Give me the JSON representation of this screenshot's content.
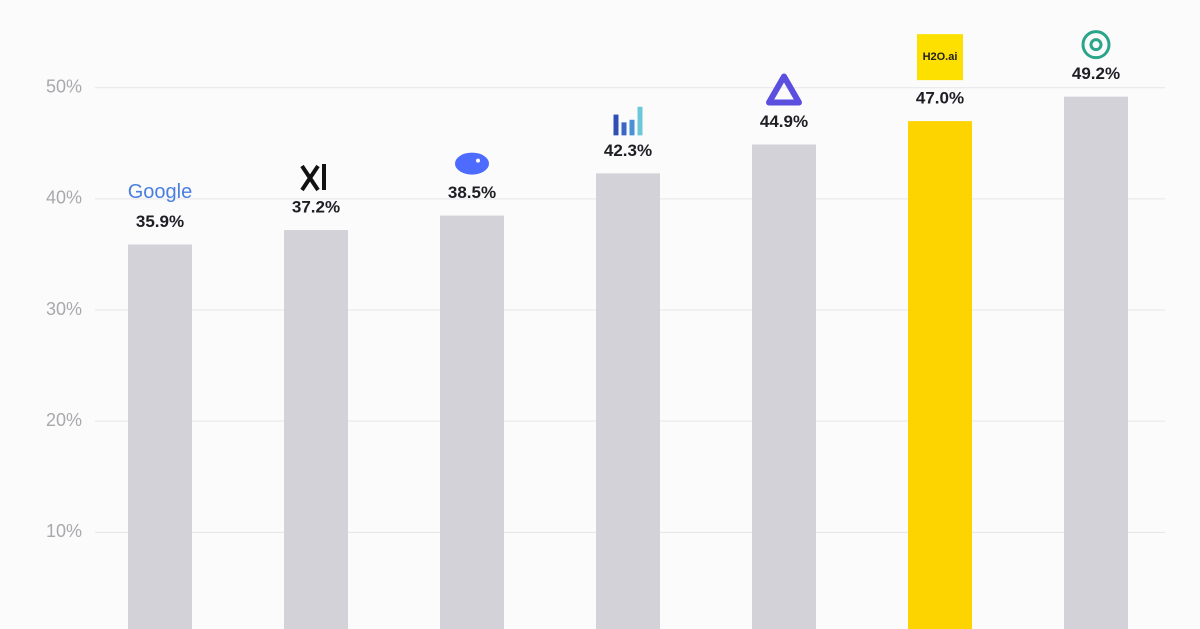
{
  "chart_data": {
    "type": "bar",
    "categories": [
      "Google",
      null,
      null,
      null,
      null,
      "H2O.ai",
      null
    ],
    "values": [
      35.9,
      37.2,
      38.5,
      42.3,
      44.9,
      47.0,
      49.2
    ],
    "value_labels": [
      "35.9%",
      "37.2%",
      "38.5%",
      "42.3%",
      "44.9%",
      "47.0%",
      "49.2%"
    ],
    "colors": [
      "#d4d2d9",
      "#d4d2d9",
      "#d4d2d9",
      "#d4d2d9",
      "#d4d2d9",
      "#fdd300",
      "#d4d2d9"
    ],
    "ylim": [
      1.3,
      57.9
    ],
    "yticks": [
      {
        "value": 10,
        "label": "10%"
      },
      {
        "value": 20,
        "label": "20%"
      },
      {
        "value": 30,
        "label": "30%"
      },
      {
        "value": 40,
        "label": "40%"
      },
      {
        "value": 50,
        "label": "50%"
      }
    ],
    "grid": true
  }
}
